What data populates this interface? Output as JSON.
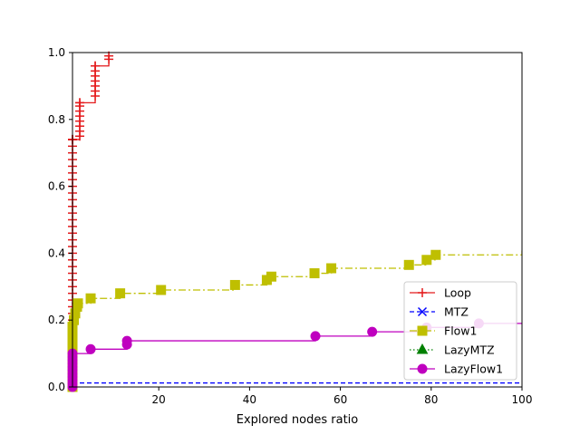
{
  "chart_data": {
    "type": "line",
    "title": "",
    "xlabel": "Explored nodes ratio",
    "ylabel": "",
    "xlim": [
      1,
      100
    ],
    "ylim": [
      0,
      1.0
    ],
    "xticks": [
      20,
      40,
      60,
      80,
      100
    ],
    "xtick_labels": [
      "20",
      "40",
      "60",
      "80",
      "100"
    ],
    "yticks": [
      0.0,
      0.2,
      0.4,
      0.6,
      0.8,
      1.0
    ],
    "ytick_labels": [
      "0.0",
      "0.2",
      "0.4",
      "0.6",
      "0.8",
      "1.0"
    ],
    "grid": false,
    "legend_position": "lower-right",
    "series": [
      {
        "name": "Loop",
        "color": "#e41a1c",
        "linestyle": "solid",
        "marker": "plus",
        "step": true,
        "x": [
          1.0,
          1.0,
          1.0,
          1.0,
          1.0,
          1.0,
          1.0,
          1.0,
          1.0,
          1.0,
          1.0,
          1.0,
          1.0,
          1.0,
          1.0,
          1.0,
          1.0,
          1.0,
          1.0,
          1.0,
          1.0,
          1.0,
          1.0,
          1.0,
          1.0,
          1.0,
          1.0,
          1.0,
          1.0,
          1.0,
          1.0,
          1.0,
          1.0,
          1.0,
          1.0,
          1.0,
          1.0,
          1.0,
          1.0,
          1.0,
          1.0,
          1.0,
          2.6,
          2.6,
          2.6,
          2.6,
          2.6,
          2.6,
          2.6,
          2.6,
          2.6,
          6.0,
          6.0,
          6.0,
          6.0,
          6.0,
          6.0,
          6.0,
          6.0,
          9.0,
          9.0
        ],
        "y": [
          0.0,
          0.02,
          0.04,
          0.06,
          0.08,
          0.1,
          0.12,
          0.14,
          0.16,
          0.18,
          0.2,
          0.22,
          0.24,
          0.26,
          0.28,
          0.3,
          0.32,
          0.34,
          0.36,
          0.38,
          0.4,
          0.42,
          0.44,
          0.46,
          0.48,
          0.5,
          0.52,
          0.54,
          0.56,
          0.58,
          0.6,
          0.62,
          0.64,
          0.66,
          0.68,
          0.7,
          0.72,
          0.74,
          0.74,
          0.74,
          0.74,
          0.74,
          0.75,
          0.765,
          0.78,
          0.795,
          0.81,
          0.825,
          0.84,
          0.85,
          0.85,
          0.87,
          0.885,
          0.9,
          0.915,
          0.93,
          0.945,
          0.96,
          0.96,
          0.98,
          0.99
        ]
      },
      {
        "name": "MTZ",
        "color": "#0000ff",
        "linestyle": "dashed",
        "marker": "x",
        "step": true,
        "x": [
          1.0,
          100
        ],
        "y": [
          0.012,
          0.012
        ]
      },
      {
        "name": "Flow1",
        "color": "#bfbf00",
        "linestyle": "dashdot",
        "marker": "square",
        "step": true,
        "x": [
          1.0,
          1.0,
          1.0,
          1.0,
          1.0,
          1.0,
          1.0,
          1.0,
          1.0,
          1.0,
          1.3,
          1.6,
          2.0,
          2.2,
          5.0,
          11.5,
          20.5,
          36.8,
          43.8,
          44.8,
          54.3,
          58.0,
          75.1,
          79.0,
          81.0,
          100
        ],
        "y": [
          0.0,
          0.02,
          0.04,
          0.06,
          0.08,
          0.1,
          0.12,
          0.14,
          0.16,
          0.18,
          0.2,
          0.22,
          0.24,
          0.25,
          0.265,
          0.28,
          0.29,
          0.305,
          0.32,
          0.33,
          0.34,
          0.355,
          0.365,
          0.38,
          0.395,
          0.408
        ]
      },
      {
        "name": "LazyMTZ",
        "color": "#008000",
        "linestyle": "dotted",
        "marker": "triangle",
        "step": true,
        "x": [],
        "y": []
      },
      {
        "name": "LazyFlow1",
        "color": "#bf00bf",
        "linestyle": "solid",
        "marker": "circle",
        "step": true,
        "x": [
          1.0,
          1.0,
          1.0,
          1.0,
          1.0,
          1.0,
          1.0,
          1.0,
          1.0,
          1.0,
          1.0,
          5.0,
          13.0,
          13.0,
          54.5,
          67.0,
          79.0,
          90.5,
          100
        ],
        "y": [
          0.0,
          0.01,
          0.02,
          0.03,
          0.04,
          0.05,
          0.06,
          0.07,
          0.08,
          0.09,
          0.1,
          0.113,
          0.127,
          0.138,
          0.152,
          0.165,
          0.178,
          0.19,
          0.19
        ]
      }
    ]
  }
}
